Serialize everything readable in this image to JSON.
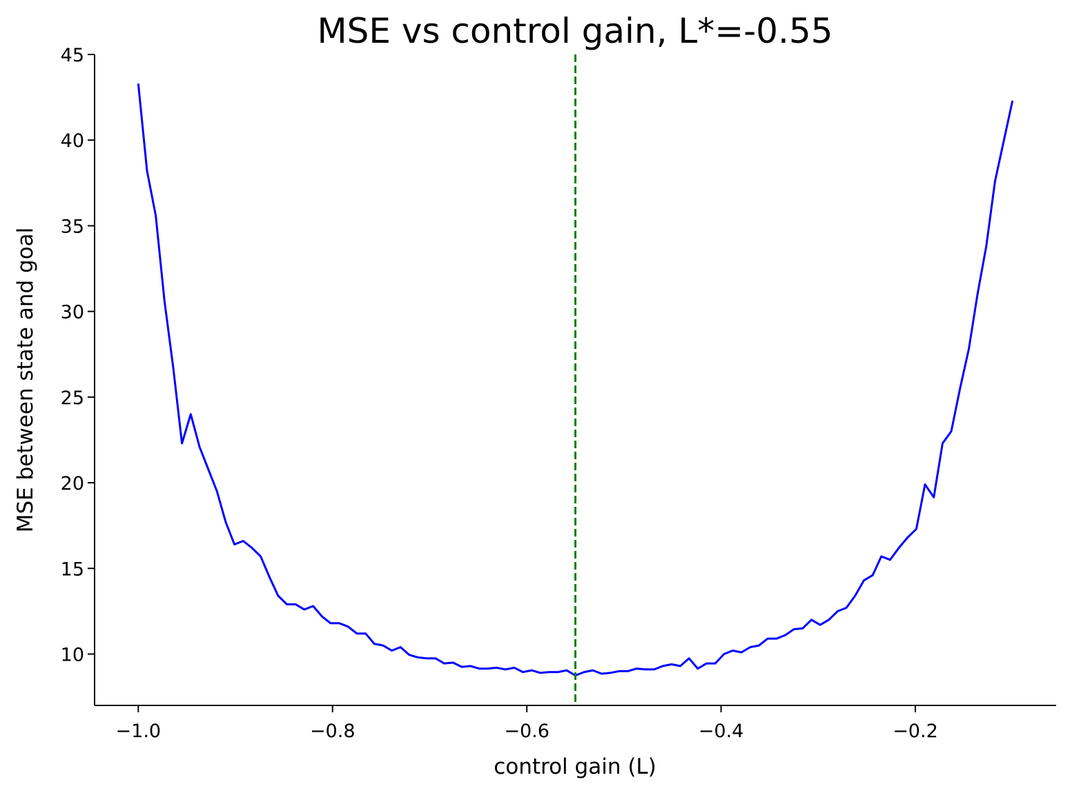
{
  "chart_data": {
    "type": "line",
    "title": "MSE vs control gain, L*=-0.55",
    "xlabel": "control gain (L)",
    "ylabel": "MSE between state and goal",
    "xlim": [
      -1.045,
      -0.055
    ],
    "ylim": [
      7.0,
      45.0
    ],
    "xticks": [
      -1.0,
      -0.8,
      -0.6,
      -0.4,
      -0.2
    ],
    "xtick_labels": [
      "−1.0",
      "−0.8",
      "−0.6",
      "−0.4",
      "−0.2"
    ],
    "yticks": [
      10,
      15,
      20,
      25,
      30,
      35,
      40,
      45
    ],
    "ytick_labels": [
      "10",
      "15",
      "20",
      "25",
      "30",
      "35",
      "40",
      "45"
    ],
    "grid": false,
    "spines": [
      "left",
      "bottom"
    ],
    "series": [
      {
        "color": "#0000ff",
        "x": [
          -1.0,
          -0.991,
          -0.982,
          -0.973,
          -0.964,
          -0.955,
          -0.946,
          -0.937,
          -0.928,
          -0.919,
          -0.91,
          -0.901,
          -0.892,
          -0.883,
          -0.874,
          -0.865,
          -0.856,
          -0.847,
          -0.838,
          -0.829,
          -0.82,
          -0.811,
          -0.802,
          -0.793,
          -0.784,
          -0.775,
          -0.766,
          -0.757,
          -0.748,
          -0.739,
          -0.73,
          -0.721,
          -0.712,
          -0.703,
          -0.694,
          -0.685,
          -0.676,
          -0.667,
          -0.658,
          -0.649,
          -0.64,
          -0.631,
          -0.622,
          -0.613,
          -0.604,
          -0.595,
          -0.586,
          -0.577,
          -0.568,
          -0.559,
          -0.55,
          -0.541,
          -0.532,
          -0.523,
          -0.514,
          -0.505,
          -0.496,
          -0.487,
          -0.478,
          -0.469,
          -0.46,
          -0.451,
          -0.442,
          -0.433,
          -0.424,
          -0.415,
          -0.406,
          -0.397,
          -0.388,
          -0.379,
          -0.37,
          -0.361,
          -0.352,
          -0.343,
          -0.334,
          -0.325,
          -0.316,
          -0.307,
          -0.298,
          -0.289,
          -0.28,
          -0.271,
          -0.262,
          -0.253,
          -0.244,
          -0.235,
          -0.226,
          -0.217,
          -0.208,
          -0.199,
          -0.19,
          -0.181,
          -0.172,
          -0.163,
          -0.154,
          -0.145,
          -0.136,
          -0.127,
          -0.118,
          -0.1
        ],
        "y": [
          43.3,
          38.2,
          35.6,
          30.6,
          26.7,
          22.3,
          24.0,
          22.1,
          20.8,
          19.5,
          17.7,
          16.4,
          16.6,
          16.2,
          15.7,
          14.5,
          13.4,
          12.9,
          12.9,
          12.6,
          12.8,
          12.2,
          11.8,
          11.8,
          11.6,
          11.2,
          11.2,
          10.6,
          10.5,
          10.2,
          10.4,
          9.95,
          9.8,
          9.75,
          9.75,
          9.45,
          9.5,
          9.25,
          9.3,
          9.15,
          9.15,
          9.2,
          9.1,
          9.2,
          8.95,
          9.05,
          8.9,
          8.95,
          8.95,
          9.05,
          8.75,
          8.95,
          9.05,
          8.85,
          8.9,
          9.0,
          9.0,
          9.15,
          9.1,
          9.1,
          9.3,
          9.4,
          9.3,
          9.75,
          9.15,
          9.45,
          9.45,
          10.0,
          10.2,
          10.1,
          10.4,
          10.5,
          10.9,
          10.9,
          11.1,
          11.45,
          11.5,
          12.0,
          11.7,
          12.0,
          12.5,
          12.7,
          13.4,
          14.3,
          14.6,
          15.7,
          15.5,
          16.2,
          16.8,
          17.3,
          19.9,
          19.15,
          22.3,
          23.0,
          25.5,
          27.8,
          31.0,
          33.8,
          37.6,
          42.3
        ]
      },
      {
        "color": "#008000",
        "style": "dashed",
        "vline": -0.55
      }
    ]
  }
}
